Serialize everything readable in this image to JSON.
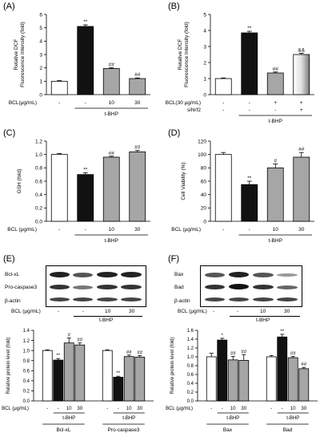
{
  "panels": {
    "A": {
      "letter": "(A)"
    },
    "B": {
      "letter": "(B)"
    },
    "C": {
      "letter": "(C)"
    },
    "D": {
      "letter": "(D)"
    },
    "E": {
      "letter": "(E)"
    },
    "F": {
      "letter": "(F)"
    }
  },
  "colors": {
    "white_bar": "#ffffff",
    "black_bar": "#111111",
    "gray_bar": "#a6a6a6",
    "gradient_bar": "#d9d9d9"
  },
  "blots": {
    "E": {
      "rows": [
        "Bcl-xL",
        "Pro-caspase3",
        "β-actin"
      ],
      "bcl_label": "BCL (μg/mL)",
      "doses": [
        "-",
        "-",
        "10",
        "30"
      ],
      "group": "t-BHP"
    },
    "F": {
      "rows": [
        "Bax",
        "Bad",
        "β-actin"
      ],
      "bcl_label": "BCL (μg/mL)",
      "doses": [
        "-",
        "-",
        "10",
        "30"
      ],
      "group": "t-BHP"
    }
  },
  "chart_data": [
    {
      "panel": "A",
      "type": "bar",
      "ylabel": "Relative DCF Fluorescence Intensity (fold)",
      "ylim": [
        0,
        6
      ],
      "yticks": [
        "0",
        "1",
        "2",
        "3",
        "4",
        "5",
        "6"
      ],
      "values": [
        1.0,
        5.1,
        1.95,
        1.2
      ],
      "errors": [
        0.05,
        0.12,
        0.07,
        0.05
      ],
      "bar_colors": [
        "white",
        "black",
        "gray",
        "gray"
      ],
      "sig": [
        "",
        "**",
        "##",
        "##"
      ],
      "row_label": "BCL(μg/mL)",
      "doses": [
        "-",
        "-",
        "10",
        "30"
      ],
      "group_label": "t-BHP",
      "group_span": [
        1,
        3
      ]
    },
    {
      "panel": "B",
      "type": "bar",
      "ylabel": "Relative DCF Fluorescence Intensity (fold)",
      "ylim": [
        0,
        5
      ],
      "yticks": [
        "0",
        "1",
        "2",
        "3",
        "4",
        "5"
      ],
      "values": [
        1.0,
        3.85,
        1.35,
        2.5
      ],
      "errors": [
        0.04,
        0.1,
        0.06,
        0.08
      ],
      "bar_colors": [
        "white",
        "black",
        "gray",
        "gradient"
      ],
      "sig": [
        "",
        "**",
        "##",
        "&&"
      ],
      "row_label": "BCL(30 μg/mL)",
      "doses": [
        "-",
        "-",
        "+",
        "+"
      ],
      "row2_label": "siNrf2",
      "doses2": [
        "-",
        "-",
        "-",
        "+"
      ],
      "group_label": "t-BHP",
      "group_span": [
        1,
        3
      ]
    },
    {
      "panel": "C",
      "type": "bar",
      "ylabel": "GSH (fold)",
      "ylim": [
        0,
        1.2
      ],
      "yticks": [
        "0.0",
        "0.2",
        "0.4",
        "0.6",
        "0.8",
        "1.0",
        "1.2"
      ],
      "values": [
        1.0,
        0.7,
        0.96,
        1.04
      ],
      "errors": [
        0.015,
        0.025,
        0.015,
        0.02
      ],
      "bar_colors": [
        "white",
        "black",
        "gray",
        "gray"
      ],
      "sig": [
        "",
        "**",
        "##",
        "##"
      ],
      "row_label": "BCL (μg/mL)",
      "doses": [
        "-",
        "-",
        "10",
        "30"
      ],
      "group_label": "t-BHP",
      "group_span": [
        1,
        3
      ]
    },
    {
      "panel": "D",
      "type": "bar",
      "ylabel": "Cell Viability (%)",
      "ylim": [
        0,
        120
      ],
      "yticks": [
        "0",
        "20",
        "40",
        "60",
        "80",
        "100",
        "120"
      ],
      "values": [
        100,
        55,
        80,
        96
      ],
      "errors": [
        3,
        5,
        6,
        7
      ],
      "bar_colors": [
        "white",
        "black",
        "gray",
        "gray"
      ],
      "sig": [
        "",
        "**",
        "#",
        "##"
      ],
      "row_label": "BCL (μg/mL)",
      "doses": [
        "-",
        "-",
        "10",
        "30"
      ],
      "group_label": "t-BHP",
      "group_span": [
        1,
        3
      ]
    },
    {
      "panel": "E",
      "type": "bar",
      "ylabel": "Relative protein level (fold)",
      "ylim": [
        0,
        1.4
      ],
      "yticks": [
        "0.0",
        "0.2",
        "0.4",
        "0.6",
        "0.8",
        "1.0",
        "1.2",
        "1.4"
      ],
      "groups": [
        {
          "name": "Bcl-xL",
          "values": [
            1.0,
            0.81,
            1.15,
            1.11
          ],
          "errors": [
            0.015,
            0.03,
            0.1,
            0.04
          ],
          "sig": [
            "",
            "**",
            "#",
            "##"
          ]
        },
        {
          "name": "Pro-caspase3",
          "values": [
            1.0,
            0.47,
            0.88,
            0.87
          ],
          "errors": [
            0.015,
            0.02,
            0.03,
            0.03
          ],
          "sig": [
            "",
            "**",
            "##",
            "##"
          ]
        }
      ],
      "bar_colors": [
        "white",
        "black",
        "gray",
        "gray"
      ],
      "row_label": "BCL (μg/mL)",
      "doses": [
        "-",
        "-",
        "10",
        "30"
      ],
      "group_label": "t-BHP"
    },
    {
      "panel": "F",
      "type": "bar",
      "ylabel": "Relative protein level (fold)",
      "ylim": [
        0,
        1.6
      ],
      "yticks": [
        "0.0",
        "0.2",
        "0.4",
        "0.6",
        "0.8",
        "1.0",
        "1.2",
        "1.4",
        "1.6"
      ],
      "groups": [
        {
          "name": "Bax",
          "values": [
            1.0,
            1.38,
            0.93,
            0.92
          ],
          "errors": [
            0.08,
            0.04,
            0.08,
            0.13
          ],
          "sig": [
            "",
            "*",
            "##",
            "##"
          ]
        },
        {
          "name": "Bad",
          "values": [
            1.0,
            1.45,
            0.98,
            0.73
          ],
          "errors": [
            0.03,
            0.06,
            0.03,
            0.03
          ],
          "sig": [
            "",
            "**",
            "##",
            "##"
          ]
        }
      ],
      "bar_colors": [
        "white",
        "black",
        "gray",
        "gray"
      ],
      "row_label": "BCL (μg/mL)",
      "doses": [
        "-",
        "-",
        "10",
        "30"
      ],
      "group_label": "t-BHP"
    }
  ]
}
